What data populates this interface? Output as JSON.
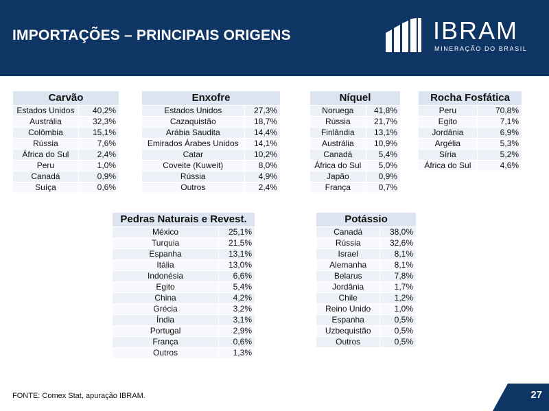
{
  "header": {
    "title": "IMPORTAÇÕES – PRINCIPAIS ORIGENS",
    "logo_name": "IBRAM",
    "logo_tagline": "MINERAÇÃO DO BRASIL",
    "logo_icon": "ibram-bars-icon",
    "background_color": "#0f3564"
  },
  "tables": {
    "carvao": {
      "title": "Carvão",
      "rows": [
        [
          "Estados Unidos",
          "40,2%"
        ],
        [
          "Austrália",
          "32,3%"
        ],
        [
          "Colômbia",
          "15,1%"
        ],
        [
          "Rússia",
          "7,6%"
        ],
        [
          "África do Sul",
          "2,4%"
        ],
        [
          "Peru",
          "1,0%"
        ],
        [
          "Canadá",
          "0,9%"
        ],
        [
          "Suíça",
          "0,6%"
        ]
      ]
    },
    "enxofre": {
      "title": "Enxofre",
      "rows": [
        [
          "Estados Unidos",
          "27,3%"
        ],
        [
          "Cazaquistão",
          "18,7%"
        ],
        [
          "Arábia Saudita",
          "14,4%"
        ],
        [
          "Emirados Árabes Unidos",
          "14,1%"
        ],
        [
          "Catar",
          "10,2%"
        ],
        [
          "Coveite (Kuweit)",
          "8,0%"
        ],
        [
          "Rússia",
          "4,9%"
        ],
        [
          "Outros",
          "2,4%"
        ]
      ]
    },
    "niquel": {
      "title": "Níquel",
      "rows": [
        [
          "Noruega",
          "41,8%"
        ],
        [
          "Rússia",
          "21,7%"
        ],
        [
          "Finlândia",
          "13,1%"
        ],
        [
          "Austrália",
          "10,9%"
        ],
        [
          "Canadá",
          "5,4%"
        ],
        [
          "África do Sul",
          "5,0%"
        ],
        [
          "Japão",
          "0,9%"
        ],
        [
          "França",
          "0,7%"
        ]
      ]
    },
    "rocha": {
      "title": "Rocha Fosfática",
      "rows": [
        [
          "Peru",
          "70,8%"
        ],
        [
          "Egito",
          "7,1%"
        ],
        [
          "Jordânia",
          "6,9%"
        ],
        [
          "Argélia",
          "5,3%"
        ],
        [
          "Síria",
          "5,2%"
        ],
        [
          "África do Sul",
          "4,6%"
        ]
      ]
    },
    "pedras": {
      "title": "Pedras Naturais e Revest.",
      "rows": [
        [
          "México",
          "25,1%"
        ],
        [
          "Turquia",
          "21,5%"
        ],
        [
          "Espanha",
          "13,1%"
        ],
        [
          "Itália",
          "13,0%"
        ],
        [
          "Indonésia",
          "6,6%"
        ],
        [
          "Egito",
          "5,4%"
        ],
        [
          "China",
          "4,2%"
        ],
        [
          "Grécia",
          "3,2%"
        ],
        [
          "Índia",
          "3,1%"
        ],
        [
          "Portugal",
          "2,9%"
        ],
        [
          "França",
          "0,6%"
        ],
        [
          "Outros",
          "1,3%"
        ]
      ]
    },
    "potassio": {
      "title": "Potássio",
      "rows": [
        [
          "Canadá",
          "38,0%"
        ],
        [
          "Rússia",
          "32,6%"
        ],
        [
          "Israel",
          "8,1%"
        ],
        [
          "Alemanha",
          "8,1%"
        ],
        [
          "Belarus",
          "7,8%"
        ],
        [
          "Jordânia",
          "1,7%"
        ],
        [
          "Chile",
          "1,2%"
        ],
        [
          "Reino Unido",
          "1,0%"
        ],
        [
          "Espanha",
          "0,5%"
        ],
        [
          "Uzbequistão",
          "0,5%"
        ],
        [
          "Outros",
          "0,5%"
        ]
      ]
    }
  },
  "footer": {
    "source": "FONTE: Comex Stat, apuração IBRAM.",
    "page_number": "27"
  }
}
